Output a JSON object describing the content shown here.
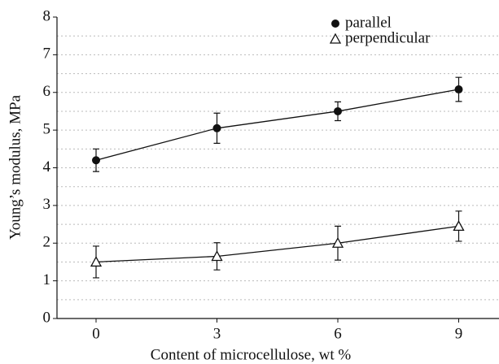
{
  "chart_data": {
    "type": "scatter",
    "xlabel": "Content of microcellulose, wt %",
    "ylabel": "Young’s modulus, MPa",
    "xlim": [
      -0.97,
      10
    ],
    "ylim": [
      0,
      8
    ],
    "xticks": [
      0,
      3,
      6,
      9
    ],
    "yticks": [
      0,
      1,
      2,
      3,
      4,
      5,
      6,
      7,
      8
    ],
    "ygrid": [
      0.5,
      1,
      1.5,
      2,
      2.5,
      3,
      3.5,
      4,
      4.5,
      5,
      5.5,
      6,
      6.5,
      7,
      7.5
    ],
    "grid": true,
    "legend": "upper right",
    "series": [
      {
        "name": "parallel",
        "color": "#111111",
        "marker": "circle",
        "x": [
          0,
          3,
          6,
          9
        ],
        "values": [
          4.2,
          5.05,
          5.5,
          6.08
        ],
        "errors": [
          0.3,
          0.4,
          0.25,
          0.32
        ]
      },
      {
        "name": "perpendicular",
        "color": "#111111",
        "marker": "triangle",
        "x": [
          0,
          3,
          6,
          9
        ],
        "values": [
          1.5,
          1.65,
          2.0,
          2.45
        ],
        "errors": [
          0.42,
          0.36,
          0.45,
          0.4
        ]
      }
    ]
  }
}
